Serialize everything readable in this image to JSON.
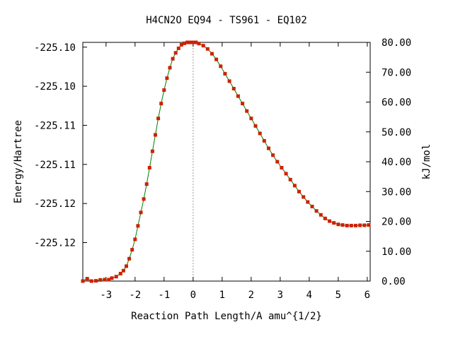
{
  "chart_data": {
    "type": "line",
    "title": "H4CN2O   EQ94 - TS961 - EQ102",
    "xlabel": "Reaction Path Length/A amu^{1/2}",
    "ylabel_left": "Energy/Hartree",
    "ylabel_right": "kJ/mol",
    "xlim": [
      -3.8,
      6.1
    ],
    "ylim_right": [
      0,
      80
    ],
    "x_ticks": [
      -3,
      -2,
      -1,
      0,
      1,
      2,
      3,
      4,
      5,
      6
    ],
    "x_tick_labels": [
      "-3",
      "-2",
      "-1",
      "0",
      "1",
      "2",
      "3",
      "4",
      "5",
      "6"
    ],
    "left_ticks_kjmol": [
      12.9,
      26.0,
      39.1,
      52.2,
      65.3,
      78.4
    ],
    "left_tick_labels": [
      "-225.12",
      "-225.12",
      "-225.11",
      "-225.11",
      "-225.10",
      "-225.10"
    ],
    "right_ticks": [
      0,
      10,
      20,
      30,
      40,
      50,
      60,
      70,
      80
    ],
    "right_tick_labels": [
      "0.00",
      "10.00",
      "20.00",
      "30.00",
      "40.00",
      "50.00",
      "60.00",
      "70.00",
      "80.00"
    ],
    "ts_x": 0,
    "grid": false,
    "line_color": "#008000",
    "marker_color": "#cc2200",
    "series": [
      {
        "points": [
          [
            -3.8,
            0.0
          ],
          [
            -3.65,
            0.8
          ],
          [
            -3.5,
            0.0
          ],
          [
            -3.35,
            0.1
          ],
          [
            -3.2,
            0.4
          ],
          [
            -3.05,
            0.5
          ],
          [
            -2.9,
            0.5
          ],
          [
            -2.8,
            1.0
          ],
          [
            -2.65,
            1.5
          ],
          [
            -2.5,
            2.5
          ],
          [
            -2.4,
            3.5
          ],
          [
            -2.3,
            5.0
          ],
          [
            -2.2,
            7.5
          ],
          [
            -2.1,
            10.5
          ],
          [
            -2.0,
            14.0
          ],
          [
            -1.9,
            18.5
          ],
          [
            -1.8,
            23.0
          ],
          [
            -1.7,
            27.5
          ],
          [
            -1.6,
            32.5
          ],
          [
            -1.5,
            38.0
          ],
          [
            -1.4,
            43.5
          ],
          [
            -1.3,
            49.0
          ],
          [
            -1.2,
            54.5
          ],
          [
            -1.1,
            59.5
          ],
          [
            -1.0,
            64.0
          ],
          [
            -0.9,
            68.0
          ],
          [
            -0.8,
            71.5
          ],
          [
            -0.7,
            74.5
          ],
          [
            -0.6,
            76.5
          ],
          [
            -0.5,
            78.0
          ],
          [
            -0.4,
            79.2
          ],
          [
            -0.3,
            79.7
          ],
          [
            -0.2,
            80.0
          ],
          [
            -0.1,
            80.0
          ],
          [
            0.0,
            80.0
          ],
          [
            0.1,
            80.0
          ],
          [
            0.2,
            79.6
          ],
          [
            0.35,
            78.9
          ],
          [
            0.5,
            77.8
          ],
          [
            0.65,
            76.2
          ],
          [
            0.8,
            74.3
          ],
          [
            0.95,
            72.0
          ],
          [
            1.1,
            69.5
          ],
          [
            1.25,
            67.0
          ],
          [
            1.4,
            64.5
          ],
          [
            1.55,
            62.0
          ],
          [
            1.7,
            59.5
          ],
          [
            1.85,
            57.0
          ],
          [
            2.0,
            54.5
          ],
          [
            2.15,
            52.0
          ],
          [
            2.3,
            49.5
          ],
          [
            2.45,
            47.0
          ],
          [
            2.6,
            44.5
          ],
          [
            2.75,
            42.2
          ],
          [
            2.9,
            40.0
          ],
          [
            3.05,
            38.0
          ],
          [
            3.2,
            36.0
          ],
          [
            3.35,
            34.0
          ],
          [
            3.5,
            32.0
          ],
          [
            3.65,
            30.0
          ],
          [
            3.8,
            28.2
          ],
          [
            3.95,
            26.5
          ],
          [
            4.1,
            25.0
          ],
          [
            4.25,
            23.5
          ],
          [
            4.4,
            22.2
          ],
          [
            4.55,
            21.0
          ],
          [
            4.7,
            20.1
          ],
          [
            4.85,
            19.5
          ],
          [
            5.0,
            19.0
          ],
          [
            5.15,
            18.8
          ],
          [
            5.3,
            18.6
          ],
          [
            5.45,
            18.6
          ],
          [
            5.6,
            18.6
          ],
          [
            5.75,
            18.7
          ],
          [
            5.9,
            18.7
          ],
          [
            6.05,
            18.8
          ]
        ]
      }
    ]
  }
}
